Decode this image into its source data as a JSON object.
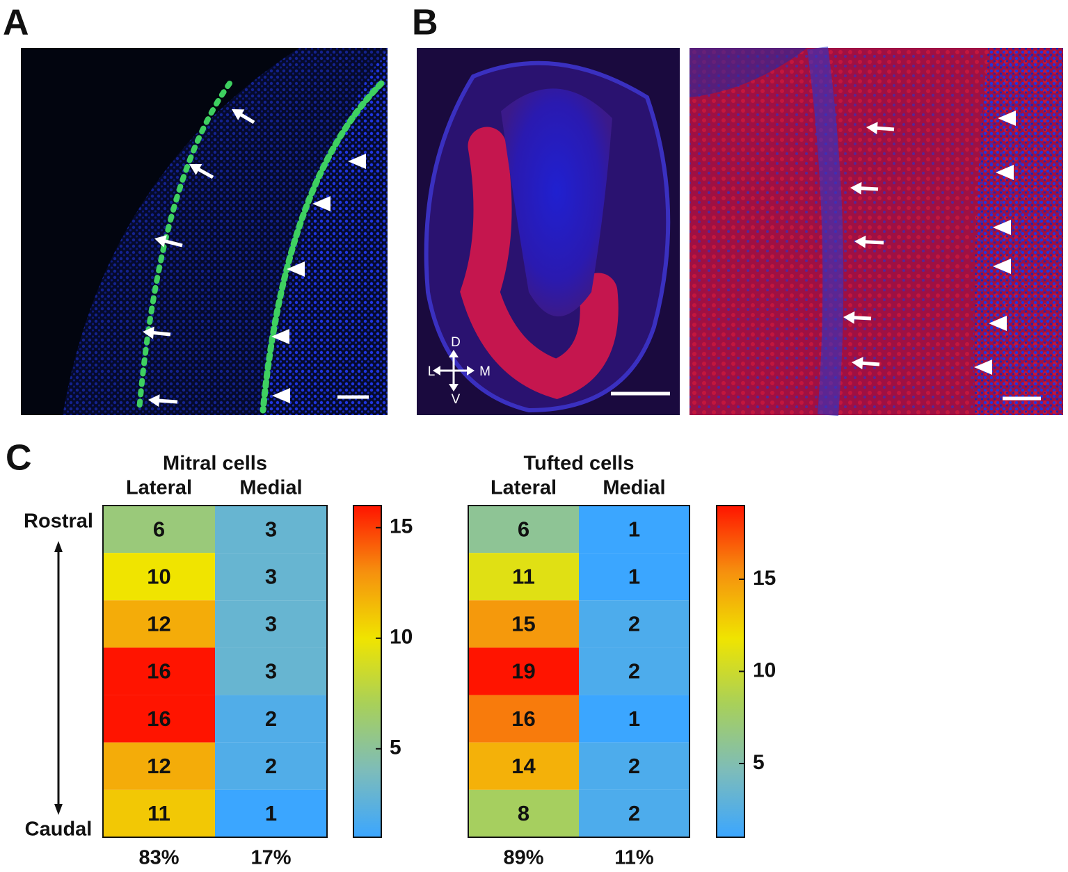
{
  "panel_labels": [
    "A",
    "B",
    "C"
  ],
  "orientation": {
    "dorsal": "D",
    "ventral": "V",
    "lateral": "L",
    "medial": "M"
  },
  "axis_labels": {
    "top": "Rostral",
    "bottom": "Caudal"
  },
  "colorscale": [
    "#3ba6ff",
    "#7dbcba",
    "#a8d05a",
    "#f0e400",
    "#f6900e",
    "#ff1400"
  ],
  "chart_data": [
    {
      "type": "heatmap",
      "title": "Mitral cells",
      "series": [
        {
          "name": "Lateral",
          "values": [
            6,
            10,
            12,
            16,
            16,
            12,
            11
          ]
        },
        {
          "name": "Medial",
          "values": [
            3,
            3,
            3,
            3,
            2,
            2,
            1
          ]
        }
      ],
      "percentages": {
        "values": [
          83,
          17
        ],
        "value_labels": [
          "83%",
          "17%"
        ]
      },
      "zlim": [
        1,
        16
      ],
      "zticks": [
        5,
        10,
        15
      ]
    },
    {
      "type": "heatmap",
      "title": "Tufted cells",
      "series": [
        {
          "name": "Lateral",
          "values": [
            6,
            11,
            15,
            19,
            16,
            14,
            8
          ]
        },
        {
          "name": "Medial",
          "values": [
            1,
            1,
            2,
            2,
            1,
            2,
            2
          ]
        }
      ],
      "percentages": {
        "values": [
          89,
          11
        ],
        "value_labels": [
          "89%",
          "11%"
        ]
      },
      "zlim": [
        1,
        19
      ],
      "zticks": [
        5,
        10,
        15
      ]
    }
  ]
}
